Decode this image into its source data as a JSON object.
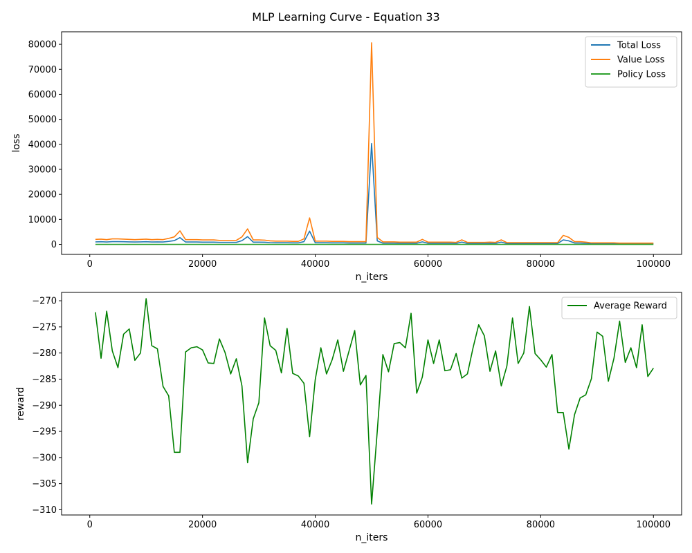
{
  "figure": {
    "title": "MLP Learning Curve - Equation 33"
  },
  "colors": {
    "total_loss": "#1f77b4",
    "value_loss": "#ff7f0e",
    "policy_loss": "#2ca02c",
    "reward": "#008000"
  },
  "chart_data": [
    {
      "type": "line",
      "xlabel": "n_iters",
      "ylabel": "loss",
      "xlim": [
        -5000,
        105000
      ],
      "ylim": [
        -4000,
        85000
      ],
      "xticks": [
        0,
        20000,
        40000,
        60000,
        80000,
        100000
      ],
      "yticks": [
        0,
        10000,
        20000,
        30000,
        40000,
        50000,
        60000,
        70000,
        80000
      ],
      "legend_position": "top-right",
      "x": [
        1000,
        2000,
        3000,
        4000,
        5000,
        6000,
        7000,
        8000,
        9000,
        10000,
        11000,
        12000,
        13000,
        14000,
        15000,
        16000,
        17000,
        18000,
        19000,
        20000,
        21000,
        22000,
        23000,
        24000,
        25000,
        26000,
        27000,
        28000,
        29000,
        30000,
        31000,
        32000,
        33000,
        34000,
        35000,
        36000,
        37000,
        38000,
        39000,
        40000,
        41000,
        42000,
        43000,
        44000,
        45000,
        46000,
        47000,
        48000,
        49000,
        50000,
        51000,
        52000,
        53000,
        54000,
        55000,
        56000,
        57000,
        58000,
        59000,
        60000,
        61000,
        62000,
        63000,
        64000,
        65000,
        66000,
        67000,
        68000,
        69000,
        70000,
        71000,
        72000,
        73000,
        74000,
        75000,
        76000,
        77000,
        78000,
        79000,
        80000,
        81000,
        82000,
        83000,
        84000,
        85000,
        86000,
        87000,
        88000,
        89000,
        90000,
        91000,
        92000,
        93000,
        94000,
        95000,
        96000,
        97000,
        98000,
        99000,
        100000
      ],
      "series": [
        {
          "name": "Total Loss",
          "color_key": "total_loss",
          "values": [
            1000,
            1050,
            950,
            1100,
            1100,
            1050,
            1000,
            950,
            1000,
            1050,
            950,
            1000,
            950,
            1200,
            1500,
            2700,
            950,
            950,
            950,
            900,
            900,
            900,
            800,
            800,
            800,
            800,
            1500,
            3100,
            900,
            900,
            850,
            700,
            650,
            650,
            650,
            600,
            600,
            1100,
            5300,
            650,
            650,
            650,
            600,
            600,
            600,
            550,
            550,
            550,
            550,
            40300,
            1400,
            500,
            500,
            500,
            450,
            450,
            450,
            450,
            1000,
            450,
            450,
            450,
            450,
            450,
            400,
            900,
            400,
            400,
            400,
            400,
            450,
            400,
            900,
            350,
            350,
            350,
            350,
            350,
            350,
            350,
            350,
            350,
            350,
            1800,
            1400,
            550,
            550,
            450,
            300,
            300,
            300,
            300,
            300,
            250,
            250,
            250,
            250,
            250,
            250,
            250
          ]
        },
        {
          "name": "Value Loss",
          "color_key": "value_loss",
          "values": [
            2000,
            2100,
            1900,
            2200,
            2200,
            2100,
            2000,
            1900,
            2000,
            2100,
            1900,
            2000,
            1900,
            2400,
            3000,
            5400,
            1900,
            1900,
            1900,
            1800,
            1800,
            1800,
            1600,
            1600,
            1600,
            1600,
            3000,
            6200,
            1800,
            1800,
            1700,
            1400,
            1300,
            1300,
            1300,
            1200,
            1200,
            2200,
            10600,
            1300,
            1300,
            1300,
            1200,
            1200,
            1200,
            1100,
            1100,
            1100,
            1100,
            80600,
            2800,
            1000,
            1000,
            1000,
            900,
            900,
            900,
            900,
            2000,
            900,
            900,
            900,
            900,
            900,
            800,
            1800,
            800,
            800,
            800,
            800,
            900,
            800,
            1800,
            700,
            700,
            700,
            700,
            700,
            700,
            700,
            700,
            700,
            700,
            3600,
            2800,
            1100,
            1100,
            900,
            600,
            600,
            600,
            600,
            600,
            500,
            500,
            500,
            500,
            500,
            500,
            500
          ]
        },
        {
          "name": "Policy Loss",
          "color_key": "policy_loss",
          "values": [
            0,
            0,
            0,
            0,
            0,
            0,
            0,
            0,
            0,
            0,
            0,
            0,
            0,
            0,
            0,
            0,
            0,
            0,
            0,
            0,
            0,
            0,
            0,
            0,
            0,
            0,
            0,
            0,
            0,
            0,
            0,
            0,
            0,
            0,
            0,
            0,
            0,
            0,
            0,
            0,
            0,
            0,
            0,
            0,
            0,
            0,
            0,
            0,
            0,
            0,
            0,
            0,
            0,
            0,
            0,
            0,
            0,
            0,
            0,
            0,
            0,
            0,
            0,
            0,
            0,
            0,
            0,
            0,
            0,
            0,
            0,
            0,
            0,
            0,
            0,
            0,
            0,
            0,
            0,
            0,
            0,
            0,
            0,
            0,
            0,
            0,
            0,
            0,
            0,
            0,
            0,
            0,
            0,
            0,
            0,
            0,
            0,
            0,
            0,
            0
          ]
        }
      ]
    },
    {
      "type": "line",
      "xlabel": "n_iters",
      "ylabel": "reward",
      "xlim": [
        -5000,
        105000
      ],
      "ylim": [
        -311,
        -268.4
      ],
      "xticks": [
        0,
        20000,
        40000,
        60000,
        80000,
        100000
      ],
      "yticks": [
        -310,
        -305,
        -300,
        -295,
        -290,
        -285,
        -280,
        -275,
        -270
      ],
      "legend_position": "top-right",
      "x": [
        1000,
        2000,
        3000,
        4000,
        5000,
        6000,
        7000,
        8000,
        9000,
        10000,
        11000,
        12000,
        13000,
        14000,
        15000,
        16000,
        17000,
        18000,
        19000,
        20000,
        21000,
        22000,
        23000,
        24000,
        25000,
        26000,
        27000,
        28000,
        29000,
        30000,
        31000,
        32000,
        33000,
        34000,
        35000,
        36000,
        37000,
        38000,
        39000,
        40000,
        41000,
        42000,
        43000,
        44000,
        45000,
        46000,
        47000,
        48000,
        49000,
        50000,
        51000,
        52000,
        53000,
        54000,
        55000,
        56000,
        57000,
        58000,
        59000,
        60000,
        61000,
        62000,
        63000,
        64000,
        65000,
        66000,
        67000,
        68000,
        69000,
        70000,
        71000,
        72000,
        73000,
        74000,
        75000,
        76000,
        77000,
        78000,
        79000,
        80000,
        81000,
        82000,
        83000,
        84000,
        85000,
        86000,
        87000,
        88000,
        89000,
        90000,
        91000,
        92000,
        93000,
        94000,
        95000,
        96000,
        97000,
        98000,
        99000,
        100000
      ],
      "series": [
        {
          "name": "Average Reward",
          "color_key": "reward",
          "values": [
            -272.2,
            -281.0,
            -272.0,
            -279.6,
            -282.8,
            -276.4,
            -275.4,
            -281.4,
            -280.0,
            -269.6,
            -278.6,
            -279.2,
            -286.4,
            -288.2,
            -299.0,
            -299.0,
            -279.8,
            -279.0,
            -278.8,
            -279.4,
            -281.9,
            -282.0,
            -277.3,
            -279.9,
            -284.0,
            -281.1,
            -286.3,
            -301.0,
            -292.6,
            -289.5,
            -273.3,
            -278.6,
            -279.5,
            -283.8,
            -275.3,
            -283.9,
            -284.4,
            -285.8,
            -296.0,
            -285.1,
            -279.0,
            -284.0,
            -281.3,
            -277.5,
            -283.5,
            -279.6,
            -275.7,
            -286.1,
            -284.3,
            -308.9,
            -295.0,
            -280.3,
            -283.6,
            -278.2,
            -278.0,
            -279.0,
            -272.4,
            -287.7,
            -284.6,
            -277.5,
            -282.0,
            -277.5,
            -283.4,
            -283.2,
            -280.1,
            -284.8,
            -284.0,
            -279.0,
            -274.6,
            -276.7,
            -283.5,
            -279.6,
            -286.3,
            -282.5,
            -273.3,
            -282.0,
            -280.0,
            -271.1,
            -280.1,
            -281.3,
            -282.7,
            -280.3,
            -291.4,
            -291.4,
            -298.4,
            -291.8,
            -288.6,
            -288.0,
            -284.9,
            -276.0,
            -276.8,
            -285.4,
            -281.0,
            -273.9,
            -281.8,
            -279.0,
            -282.8,
            -274.6,
            -284.5,
            -282.9
          ]
        }
      ]
    }
  ]
}
